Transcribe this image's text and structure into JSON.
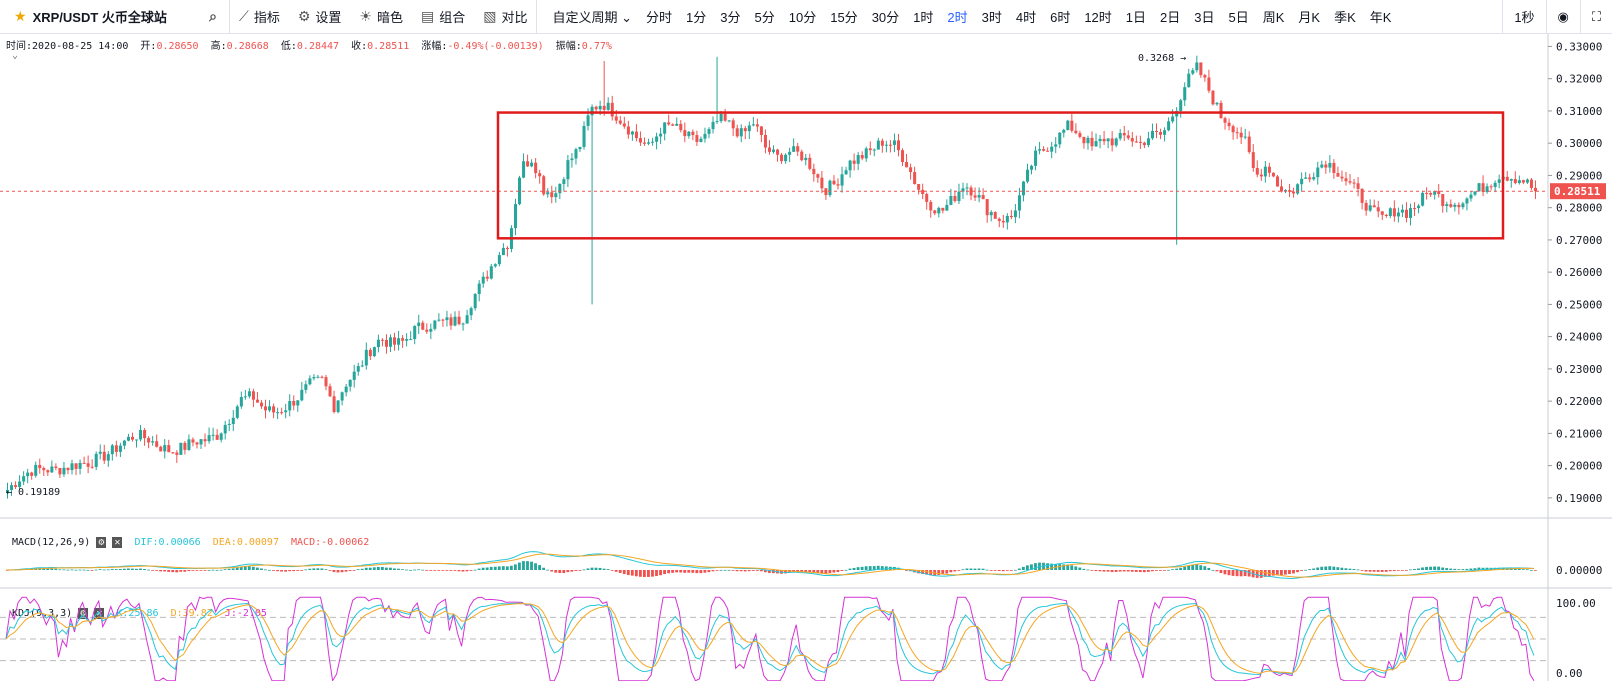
{
  "toolbar": {
    "symbol": "XRP/USDT 火币全球站",
    "icons": {
      "favorite": "star-icon",
      "search": "search-icon"
    },
    "buttons": [
      {
        "label": "指标",
        "icon": "indicator-icon"
      },
      {
        "label": "设置",
        "icon": "gear-icon"
      },
      {
        "label": "暗色",
        "icon": "sun-icon"
      },
      {
        "label": "组合",
        "icon": "combo-icon"
      },
      {
        "label": "对比",
        "icon": "compare-icon"
      }
    ],
    "custom_period": "自定义周期",
    "periods": [
      "分时",
      "1分",
      "3分",
      "5分",
      "10分",
      "15分",
      "30分",
      "1时",
      "2时",
      "3时",
      "4时",
      "6时",
      "12时",
      "1日",
      "2日",
      "3日",
      "5日",
      "周K",
      "月K",
      "季K",
      "年K"
    ],
    "active_period": "2时",
    "refresh": "1秒",
    "right_icons": [
      "camera-icon",
      "fullscreen-icon"
    ]
  },
  "ohlc_legend": {
    "time_label": "时间:",
    "time": "2020-08-25 14:00",
    "open_label": "开:",
    "open": "0.28650",
    "high_label": "高:",
    "high": "0.28668",
    "low_label": "低:",
    "low": "0.28447",
    "close_label": "收:",
    "close": "0.28511",
    "change_label": "涨幅:",
    "change": "-0.49%(-0.00139)",
    "amplitude_label": "振幅:",
    "amplitude": "0.77%"
  },
  "macd_legend": {
    "name": "MACD(12,26,9)",
    "dif": "DIF:0.00066",
    "dea": "DEA:0.00097",
    "macd": "MACD:-0.00062"
  },
  "kdj_legend": {
    "name": "KDJ(9,3,3)",
    "k": "K:25.86",
    "d": "D:39.82",
    "j": "J:-2.05"
  },
  "colors": {
    "up": "#26a69a",
    "down": "#ef5350",
    "highlight": "#e01b1b",
    "dif": "#26c6da",
    "dea": "#f5a623",
    "k": "#26c6da",
    "d": "#f5a623",
    "j": "#d633d6"
  },
  "chart_data": {
    "type": "candlestick",
    "price_axis": {
      "min": 0.185,
      "max": 0.332,
      "ticks": [
        "0.33000",
        "0.32000",
        "0.31000",
        "0.30000",
        "0.29000",
        "0.28000",
        "0.27000",
        "0.26000",
        "0.25000",
        "0.24000",
        "0.23000",
        "0.22000",
        "0.21000",
        "0.20000",
        "0.19000"
      ]
    },
    "last_price": "0.28511",
    "max_label": "0.3268",
    "min_label": "0.19189",
    "price_path": [
      0.1925,
      0.196,
      0.1985,
      0.199,
      0.1985,
      0.1995,
      0.2005,
      0.201,
      0.2025,
      0.2045,
      0.2075,
      0.2095,
      0.2085,
      0.206,
      0.2045,
      0.2055,
      0.2075,
      0.208,
      0.2095,
      0.2145,
      0.2205,
      0.2215,
      0.2175,
      0.2165,
      0.2185,
      0.2215,
      0.2255,
      0.2265,
      0.2185,
      0.2255,
      0.2295,
      0.2355,
      0.2395,
      0.2375,
      0.2385,
      0.2425,
      0.2435,
      0.2445,
      0.2445,
      0.2455,
      0.2525,
      0.2585,
      0.2655,
      0.2695,
      0.2925,
      0.2955,
      0.2855,
      0.2845,
      0.2935,
      0.2985,
      0.3105,
      0.3125,
      0.3095,
      0.3055,
      0.3015,
      0.2985,
      0.3045,
      0.3055,
      0.3025,
      0.3005,
      0.3025,
      0.3075,
      0.3055,
      0.3025,
      0.3065,
      0.2985,
      0.2955,
      0.2975,
      0.2965,
      0.2925,
      0.2855,
      0.2875,
      0.2935,
      0.2955,
      0.2975,
      0.3005,
      0.2995,
      0.2945,
      0.2865,
      0.2815,
      0.2785,
      0.2825,
      0.2875,
      0.2845,
      0.2795,
      0.2765,
      0.2765,
      0.2855,
      0.2955,
      0.2985,
      0.3015,
      0.3055,
      0.3025,
      0.2985,
      0.3015,
      0.3005,
      0.3025,
      0.2995,
      0.3025,
      0.3025,
      0.3095,
      0.3185,
      0.3235,
      0.3165,
      0.3085,
      0.3055,
      0.3015,
      0.2895,
      0.2935,
      0.2865,
      0.2845,
      0.2885,
      0.2915,
      0.2945,
      0.2915,
      0.2875,
      0.2835,
      0.2785,
      0.2765,
      0.2795,
      0.2785,
      0.2815,
      0.2855,
      0.2825,
      0.2815,
      0.2825,
      0.2855,
      0.2875,
      0.2905,
      0.2895,
      0.2885,
      0.2851
    ],
    "highlight_box": {
      "price_top": 0.3095,
      "price_bottom": 0.2705
    },
    "macd": {
      "ticks": [
        "0.00000"
      ]
    },
    "kdj": {
      "ticks": [
        "100.00",
        "0.00"
      ],
      "guides": [
        80,
        50,
        20
      ]
    }
  }
}
